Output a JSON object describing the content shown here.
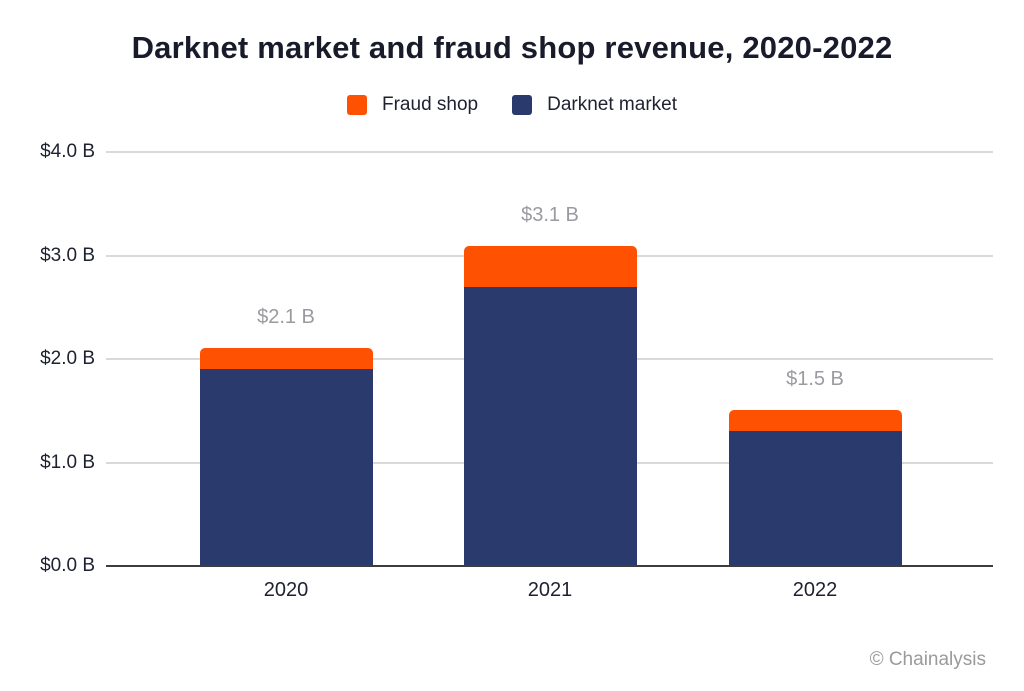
{
  "title": "Darknet market and fraud shop revenue, 2020-2022",
  "watermark": "© Chainalysis",
  "legend": [
    {
      "label": "Fraud shop",
      "color": "#ff5102"
    },
    {
      "label": "Darknet market",
      "color": "#2b3a6c"
    }
  ],
  "colors": {
    "fraud_orange": "#ff5102",
    "darknet_navy": "#2b3a6c",
    "gridline": "#d9d9d9",
    "axis_line": "#3d3d3d",
    "title_text": "#191b2b",
    "value_label_gray": "#9a9aa0",
    "watermark_gray": "#9a9a9a"
  },
  "chart_data": {
    "type": "bar",
    "stacked": true,
    "title": "Darknet market and fraud shop revenue, 2020-2022",
    "categories": [
      "2020",
      "2021",
      "2022"
    ],
    "series": [
      {
        "name": "Darknet market",
        "color": "#2b3a6c",
        "values": [
          1.9,
          2.7,
          1.3
        ]
      },
      {
        "name": "Fraud shop",
        "color": "#ff5102",
        "values": [
          0.2,
          0.4,
          0.2
        ]
      }
    ],
    "totals": [
      2.1,
      3.1,
      1.5
    ],
    "total_labels": [
      "$2.1 B",
      "$3.1 B",
      "$1.5 B"
    ],
    "y_ticks": [
      "$4.0 B",
      "$3.0 B",
      "$2.0 B",
      "$1.0 B",
      "$0.0 B"
    ],
    "y_tick_values": [
      4.0,
      3.0,
      2.0,
      1.0,
      0.0
    ],
    "ylim": [
      0,
      4.0
    ],
    "xlabel": "",
    "ylabel": "",
    "grid": true,
    "legend_position": "top"
  }
}
